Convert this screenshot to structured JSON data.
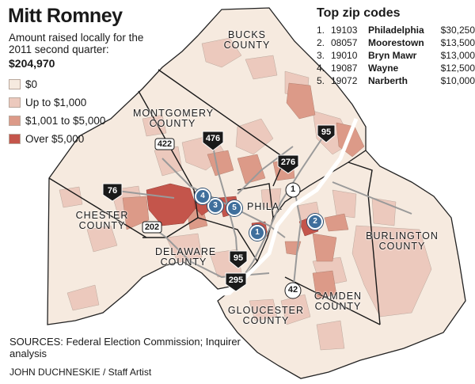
{
  "title": "Mitt Romney",
  "subtitle": "Amount raised locally for the 2011 second quarter:",
  "total": "$204,970",
  "legend": [
    {
      "label": "$0",
      "color": "#f6eadf"
    },
    {
      "label": "Up to $1,000",
      "color": "#ecc9bd"
    },
    {
      "label": "$1,001 to $5,000",
      "color": "#dc9a88"
    },
    {
      "label": "Over $5,000",
      "color": "#c4554b"
    }
  ],
  "top_zip": {
    "title": "Top zip codes",
    "rows": [
      {
        "rank": "1.",
        "zip": "19103",
        "town": "Philadelphia",
        "amount": "$30,250"
      },
      {
        "rank": "2.",
        "zip": "08057",
        "town": "Moorestown",
        "amount": "$13,500"
      },
      {
        "rank": "3.",
        "zip": "19010",
        "town": "Bryn Mawr",
        "amount": "$13,000"
      },
      {
        "rank": "4.",
        "zip": "19087",
        "town": "Wayne",
        "amount": "$12,500"
      },
      {
        "rank": "5.",
        "zip": "19072",
        "town": "Narberth",
        "amount": "$10,000"
      }
    ]
  },
  "counties": {
    "bucks": "BUCKS COUNTY",
    "montgomery": "MONTGOMERY COUNTY",
    "chester": "CHESTER COUNTY",
    "delaware": "DELAWARE COUNTY",
    "phila": "PHILA.",
    "burlington": "BURLINGTON COUNTY",
    "camden": "CAMDEN COUNTY",
    "gloucester": "GLOUCESTER COUNTY"
  },
  "highways": {
    "i476": "476",
    "us422": "422",
    "i95_north": "95",
    "i276": "276",
    "us1": "1",
    "i76": "76",
    "us202": "202",
    "i95_south": "95",
    "i295": "295",
    "nj42": "42"
  },
  "markers": {
    "m1": "1",
    "m2": "2",
    "m3": "3",
    "m4": "4",
    "m5": "5"
  },
  "sources": "SOURCES: Federal Election Commission; Inquirer analysis",
  "credit": "JOHN DUCHNESKIE / Staff Artist"
}
